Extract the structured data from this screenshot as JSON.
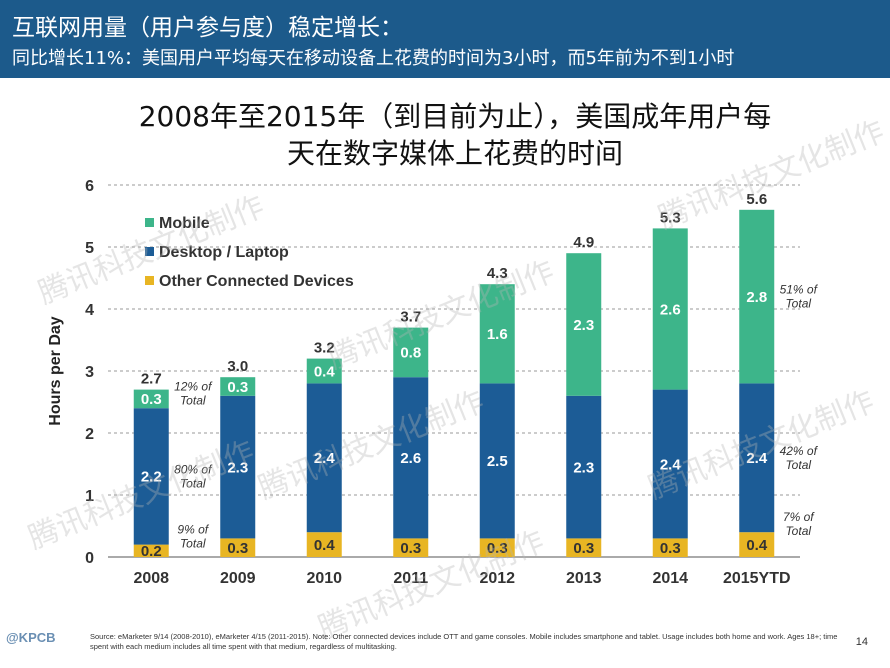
{
  "header": {
    "title": "互联网用量（用户参与度）稳定增长：",
    "subtitle": "同比增长11%：美国用户平均每天在移动设备上花费的时间为3小时，而5年前为不到1小时"
  },
  "watermark_text": "腾讯科技文化制作",
  "logo_text": "@KPCB",
  "source_text": "Source: eMarketer 9/14 (2008-2010), eMarketer 4/15 (2011-2015). Note: Other connected devices include OTT and game consoles. Mobile includes smartphone and tablet. Usage includes both home and work. Ages 18+; time spent with each medium includes all time spent with that medium, regardless of multitasking.",
  "page_number": "14",
  "colors": {
    "mobile": "#3db58a",
    "desktop": "#1c5c96",
    "other": "#e8b523",
    "header_bg": "#1c5a8b"
  },
  "chart_data": {
    "type": "bar",
    "stacked": true,
    "title": "2008年至2015年（到目前为止），美国成年用户每天在数字媒体上花费的时间",
    "title_lines": [
      "2008年至2015年（到目前为止），美国成年用户每",
      "天在数字媒体上花费的时间"
    ],
    "ylabel": "Hours per Day",
    "xlabel": "",
    "ylim": [
      0,
      6
    ],
    "yticks": [
      "0",
      "1",
      "2",
      "3",
      "4",
      "5",
      "6"
    ],
    "grid": "dashed horizontal",
    "legend_position": "top-left",
    "categories": [
      "2008",
      "2009",
      "2010",
      "2011",
      "2012",
      "2013",
      "2014",
      "2015YTD"
    ],
    "series": [
      {
        "name": "Other Connected Devices",
        "values": [
          0.2,
          0.3,
          0.4,
          0.3,
          0.3,
          0.3,
          0.3,
          0.4
        ],
        "labels": [
          "0.2",
          "0.3",
          "0.4",
          "0.3",
          "0.3",
          "0.3",
          "0.3",
          "0.4"
        ]
      },
      {
        "name": "Desktop / Laptop",
        "values": [
          2.2,
          2.3,
          2.4,
          2.6,
          2.5,
          2.3,
          2.4,
          2.4
        ],
        "labels": [
          "2.2",
          "2.3",
          "2.4",
          "2.6",
          "2.5",
          "2.3",
          "2.4",
          "2.4"
        ]
      },
      {
        "name": "Mobile",
        "values": [
          0.3,
          0.3,
          0.4,
          0.8,
          1.6,
          2.3,
          2.6,
          2.8
        ],
        "labels": [
          "0.3",
          "0.3",
          "0.4",
          "0.8",
          "1.6",
          "2.3",
          "2.6",
          "2.8"
        ]
      }
    ],
    "legend_order": [
      "Mobile",
      "Desktop / Laptop",
      "Other Connected Devices"
    ],
    "totals": [
      "2.7",
      "3.0",
      "3.2",
      "3.7",
      "4.3",
      "4.9",
      "5.3",
      "5.6"
    ],
    "annotations": [
      {
        "category": "2008",
        "series": "Mobile",
        "lines": [
          "12% of",
          "Total"
        ]
      },
      {
        "category": "2008",
        "series": "Desktop / Laptop",
        "lines": [
          "80% of",
          "Total"
        ]
      },
      {
        "category": "2008",
        "series": "Other Connected Devices",
        "lines": [
          "9% of",
          "Total"
        ]
      },
      {
        "category": "2015YTD",
        "series": "Mobile",
        "lines": [
          "51% of",
          "Total"
        ]
      },
      {
        "category": "2015YTD",
        "series": "Desktop / Laptop",
        "lines": [
          "42% of",
          "Total"
        ]
      },
      {
        "category": "2015YTD",
        "series": "Other Connected Devices",
        "lines": [
          "7% of",
          "Total"
        ]
      }
    ]
  }
}
